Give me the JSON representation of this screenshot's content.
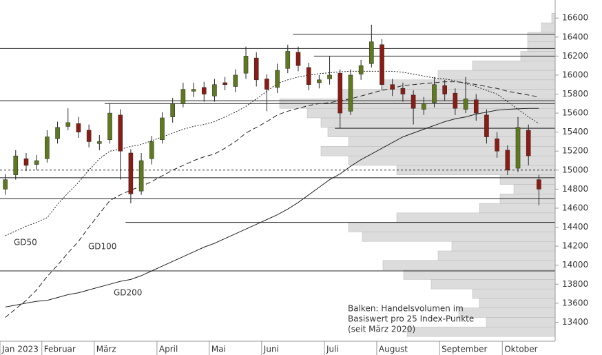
{
  "chart_data": {
    "type": "candlestick",
    "categories": [
      "Jan 2023",
      null,
      null,
      null,
      "Februar",
      null,
      null,
      null,
      null,
      "März",
      null,
      null,
      null,
      null,
      null,
      "April",
      null,
      null,
      null,
      null,
      "Mai",
      null,
      null,
      null,
      null,
      "Juni",
      null,
      null,
      null,
      null,
      null,
      "Juli",
      null,
      null,
      null,
      null,
      "August",
      null,
      null,
      null,
      null,
      null,
      "September",
      null,
      null,
      null,
      null,
      null,
      "Oktober",
      null,
      null,
      null
    ],
    "open": [
      14800,
      14950,
      15120,
      15060,
      15120,
      15330,
      15460,
      15490,
      15420,
      15280,
      15320,
      15580,
      15180,
      14780,
      15120,
      15320,
      15560,
      15700,
      15830,
      15870,
      15780,
      15920,
      15880,
      16020,
      16180,
      15960,
      15870,
      16070,
      16240,
      16080,
      15920,
      15960,
      16020,
      15620,
      16010,
      16120,
      16320,
      15900,
      15860,
      15790,
      15640,
      15710,
      15890,
      15810,
      15640,
      15740,
      15580,
      15330,
      15210,
      15020,
      15420,
      14900
    ],
    "high": [
      14960,
      15210,
      15180,
      15160,
      15420,
      15510,
      15650,
      15560,
      15480,
      15370,
      15700,
      15640,
      15220,
      15180,
      15360,
      15610,
      15760,
      15920,
      15920,
      15930,
      15960,
      15980,
      16060,
      16300,
      16240,
      16010,
      16120,
      16320,
      16300,
      16130,
      16000,
      16200,
      16060,
      16060,
      16160,
      16530,
      16380,
      15960,
      15920,
      15840,
      15770,
      15980,
      15950,
      15860,
      15980,
      15800,
      15640,
      15400,
      15260,
      15560,
      15480,
      14950
    ],
    "low": [
      14740,
      14900,
      14990,
      15000,
      15080,
      15280,
      15420,
      15340,
      15240,
      15210,
      15280,
      14900,
      14650,
      14740,
      15060,
      15280,
      15500,
      15660,
      15770,
      15720,
      15720,
      15840,
      15820,
      15960,
      15880,
      15620,
      15810,
      16020,
      16040,
      15840,
      15860,
      15900,
      15440,
      15580,
      15950,
      16080,
      15840,
      15780,
      15720,
      15480,
      15580,
      15660,
      15730,
      15580,
      15600,
      15520,
      15280,
      15130,
      14950,
      14980,
      15050,
      14630
    ],
    "close": [
      14900,
      15150,
      15050,
      15100,
      15350,
      15450,
      15500,
      15400,
      15300,
      15300,
      15600,
      15200,
      14750,
      15100,
      15300,
      15550,
      15700,
      15850,
      15850,
      15800,
      15900,
      15900,
      16000,
      16200,
      15950,
      15850,
      16050,
      16250,
      16100,
      15900,
      15950,
      16000,
      15600,
      16000,
      16100,
      16350,
      15900,
      15850,
      15800,
      15650,
      15700,
      15900,
      15800,
      15650,
      15750,
      15600,
      15350,
      15200,
      15000,
      15450,
      15150,
      14800
    ],
    "up_color": "#5f7a1e",
    "down_color": "#8a1c14",
    "series": [
      {
        "name": "GD50",
        "style": "dotted",
        "color": "#222",
        "values": [
          14310,
          14360,
          14410,
          14450,
          14500,
          14640,
          14760,
          14870,
          15000,
          15120,
          15200,
          15220,
          15250,
          15270,
          15310,
          15350,
          15390,
          15430,
          15460,
          15480,
          15510,
          15560,
          15610,
          15670,
          15750,
          15830,
          15910,
          15950,
          15980,
          16000,
          16015,
          16025,
          16035,
          16040,
          16040,
          16040,
          16040,
          16040,
          16030,
          16010,
          15990,
          15970,
          15960,
          15940,
          15910,
          15880,
          15840,
          15800,
          15720,
          15640,
          15560,
          15490
        ]
      },
      {
        "name": "GD100",
        "style": "dashed",
        "color": "#222",
        "values": [
          13450,
          13540,
          13630,
          13740,
          13880,
          14000,
          14130,
          14250,
          14400,
          14540,
          14680,
          14740,
          14790,
          14830,
          14880,
          14940,
          15000,
          15050,
          15100,
          15140,
          15170,
          15230,
          15300,
          15390,
          15450,
          15510,
          15580,
          15620,
          15650,
          15680,
          15700,
          15710,
          15730,
          15750,
          15780,
          15810,
          15840,
          15860,
          15890,
          15900,
          15910,
          15920,
          15930,
          15930,
          15920,
          15900,
          15880,
          15860,
          15830,
          15810,
          15790,
          15770
        ]
      },
      {
        "name": "GD200",
        "style": "solid",
        "color": "#222",
        "values": [
          13560,
          13580,
          13600,
          13620,
          13630,
          13660,
          13690,
          13710,
          13740,
          13770,
          13800,
          13830,
          13850,
          13890,
          13940,
          13990,
          14040,
          14090,
          14140,
          14190,
          14230,
          14280,
          14330,
          14380,
          14430,
          14480,
          14530,
          14590,
          14660,
          14740,
          14820,
          14900,
          14960,
          15040,
          15110,
          15170,
          15230,
          15290,
          15350,
          15390,
          15430,
          15470,
          15510,
          15540,
          15560,
          15590,
          15610,
          15630,
          15640,
          15645,
          15650,
          15650
        ]
      }
    ],
    "volume_profile": {
      "levels": [
        13300,
        13400,
        13500,
        13600,
        13700,
        13800,
        13900,
        14000,
        14100,
        14200,
        14300,
        14400,
        14500,
        14600,
        14700,
        14800,
        14900,
        15000,
        15100,
        15200,
        15300,
        15400,
        15500,
        15600,
        15700,
        15800,
        15900,
        16000,
        16100,
        16200,
        16300,
        16400,
        16500,
        16600
      ],
      "values": [
        215,
        100,
        140,
        110,
        120,
        180,
        220,
        250,
        170,
        150,
        280,
        300,
        230,
        110,
        80,
        60,
        80,
        230,
        300,
        340,
        300,
        330,
        340,
        360,
        400,
        310,
        250,
        170,
        120,
        50,
        40,
        40,
        20,
        5
      ],
      "color": "#dcdcdc"
    },
    "hlines": [
      {
        "value": 16430,
        "from": 28,
        "style": "solid"
      },
      {
        "value": 16280,
        "from": 0,
        "style": "solid"
      },
      {
        "value": 16200,
        "from": 30,
        "style": "solid"
      },
      {
        "value": 15730,
        "from": 0,
        "style": "solid"
      },
      {
        "value": 15700,
        "from": 10,
        "style": "solid"
      },
      {
        "value": 15440,
        "from": 32,
        "style": "solid"
      },
      {
        "value": 15000,
        "from": 0,
        "style": "dashed"
      },
      {
        "value": 14920,
        "from": 0,
        "style": "solid"
      },
      {
        "value": 14700,
        "from": 0,
        "style": "solid"
      },
      {
        "value": 14450,
        "from": 12,
        "style": "solid"
      },
      {
        "value": 13940,
        "from": 0,
        "style": "solid"
      }
    ],
    "annotation": [
      "Balken: Handelsvolumen im",
      "Basiswert pro 25 Index-Punkte",
      "(seit März 2020)"
    ],
    "ylim": [
      13200,
      16790
    ],
    "yticks": [
      13400,
      13600,
      13800,
      14000,
      14200,
      14400,
      14600,
      14800,
      15000,
      15200,
      15400,
      15600,
      15800,
      16000,
      16200,
      16400,
      16600
    ]
  }
}
